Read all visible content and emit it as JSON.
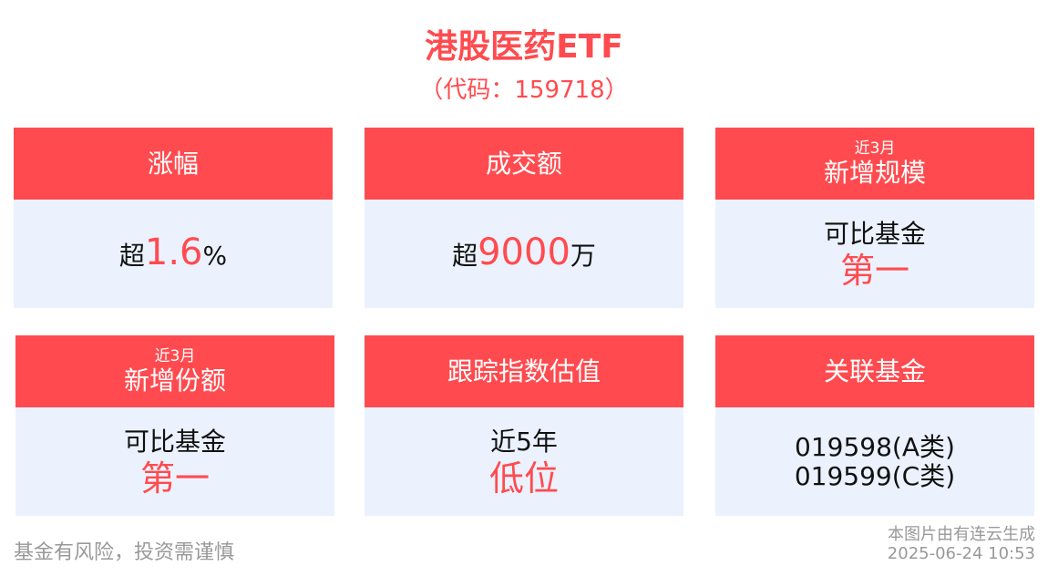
{
  "header": {
    "title": "港股医药ETF",
    "code": "（代码：159718）"
  },
  "cards": [
    {
      "header": "涨幅",
      "prefix": "超",
      "value": "1.6",
      "suffix": "%"
    },
    {
      "header": "成交额",
      "prefix": "超",
      "value": "9000",
      "suffix": "万"
    },
    {
      "header_small": "近3月",
      "header": "新增规模",
      "line1": "可比基金",
      "line2": "第一"
    },
    {
      "header_small": "近3月",
      "header": "新增份额",
      "line1": "可比基金",
      "line2": "第一"
    },
    {
      "header": "跟踪指数估值",
      "line1": "近5年",
      "line2": "低位"
    },
    {
      "header": "关联基金",
      "line1": "019598(A类)",
      "line2": "019599(C类)"
    }
  ],
  "footer": {
    "risk": "基金有风险，投资需谨慎",
    "generated": "本图片由有连云生成",
    "timestamp": "2025-06-24 10:53"
  },
  "colors": {
    "accent": "#ff4b4f",
    "card_bg": "#ebf2fe"
  }
}
